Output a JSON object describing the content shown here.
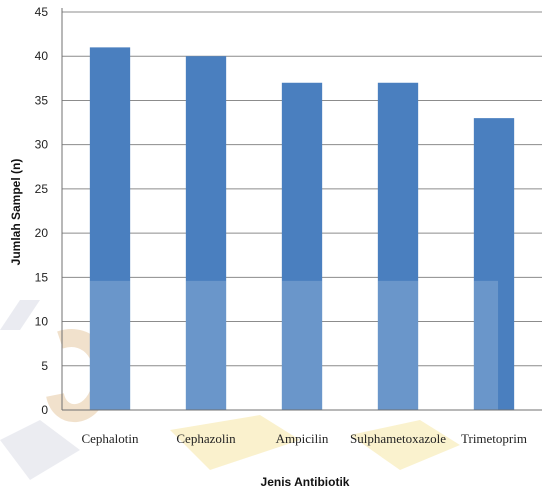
{
  "chart_data": {
    "type": "bar",
    "categories": [
      "Cephalotin",
      "Cephazolin",
      "Ampicilin",
      "Sulphametoxazole",
      "Trimetoprim"
    ],
    "values": [
      41,
      40,
      37,
      37,
      33
    ],
    "xlabel": "Jenis Antibiotik",
    "ylabel": "Jumlah Sampel (n)",
    "ylim": [
      0,
      45
    ],
    "yticks": [
      0,
      5,
      10,
      15,
      20,
      25,
      30,
      35,
      40,
      45
    ],
    "grid": true,
    "legend": "none",
    "colors": {
      "bar": "#4a7fbf",
      "grid": "#8c8c8c",
      "axis": "#707070"
    }
  }
}
